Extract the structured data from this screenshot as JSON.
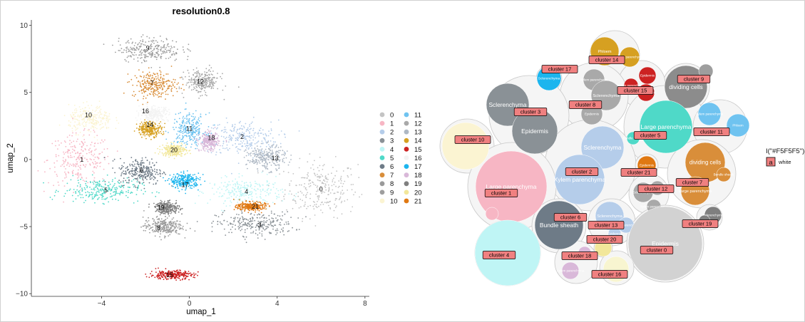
{
  "chart_data": [
    {
      "type": "scatter",
      "title": "resolution0.8",
      "xlabel": "umap_1",
      "ylabel": "umap_2",
      "xlim": [
        -7.2,
        8.2
      ],
      "ylim": [
        -10.2,
        10.4
      ],
      "xticks": [
        -4,
        0,
        4,
        8
      ],
      "yticks": [
        -10,
        -5,
        0,
        5,
        10
      ],
      "xtick_labels": [
        "−4",
        "0",
        "4",
        "8"
      ],
      "ytick_labels": [
        "−10",
        "−5",
        "0",
        "5",
        "10"
      ],
      "grid": false,
      "legend_position": "right",
      "series": [
        {
          "name": "0",
          "color": "#C4C4C4",
          "center": [
            6.0,
            -2.2
          ],
          "spread": [
            1.5,
            1.9
          ]
        },
        {
          "name": "1",
          "color": "#F7B6C4",
          "center": [
            -5.0,
            0.0
          ],
          "spread": [
            1.3,
            1.7
          ]
        },
        {
          "name": "2",
          "color": "#B5CDEA",
          "center": [
            2.4,
            1.6
          ],
          "spread": [
            1.5,
            1.2
          ]
        },
        {
          "name": "3",
          "color": "#8A9196",
          "center": [
            3.0,
            -4.8
          ],
          "spread": [
            1.6,
            0.8
          ]
        },
        {
          "name": "4",
          "color": "#BFF5F5",
          "center": [
            2.6,
            -2.4
          ],
          "spread": [
            1.5,
            0.9
          ]
        },
        {
          "name": "5",
          "color": "#4FD9C8",
          "center": [
            -4.0,
            -2.3
          ],
          "spread": [
            1.6,
            0.8
          ]
        },
        {
          "name": "6",
          "color": "#6E7B87",
          "center": [
            -2.2,
            -0.9
          ],
          "spread": [
            0.9,
            0.9
          ]
        },
        {
          "name": "7",
          "color": "#D98E3A",
          "center": [
            -1.6,
            5.6
          ],
          "spread": [
            0.9,
            0.9
          ]
        },
        {
          "name": "8",
          "color": "#9A9A9A",
          "center": [
            -1.2,
            -5.0
          ],
          "spread": [
            0.8,
            0.6
          ]
        },
        {
          "name": "9",
          "color": "#9E9E9E",
          "center": [
            -1.8,
            8.2
          ],
          "spread": [
            1.3,
            0.8
          ]
        },
        {
          "name": "10",
          "color": "#FBF4D2",
          "center": [
            -4.5,
            3.0
          ],
          "spread": [
            0.9,
            0.9
          ]
        },
        {
          "name": "11",
          "color": "#6FC3F0",
          "center": [
            0.0,
            2.2
          ],
          "spread": [
            0.7,
            1.1
          ]
        },
        {
          "name": "12",
          "color": "#A9A9A9",
          "center": [
            0.6,
            5.8
          ],
          "spread": [
            0.7,
            0.8
          ]
        },
        {
          "name": "13",
          "color": "#AEB8C4",
          "center": [
            3.5,
            0.1
          ],
          "spread": [
            0.8,
            0.8
          ]
        },
        {
          "name": "14",
          "color": "#D6A021",
          "center": [
            -1.8,
            2.3
          ],
          "spread": [
            0.5,
            0.5
          ]
        },
        {
          "name": "15",
          "color": "#CC2222",
          "center": [
            -0.8,
            -8.6
          ],
          "spread": [
            0.9,
            0.3
          ]
        },
        {
          "name": "16",
          "color": "#F3F3F3",
          "center": [
            -1.6,
            3.4
          ],
          "spread": [
            0.6,
            0.5
          ]
        },
        {
          "name": "17",
          "color": "#1CB5EE",
          "center": [
            -0.2,
            -1.6
          ],
          "spread": [
            0.6,
            0.5
          ]
        },
        {
          "name": "18",
          "color": "#D9B8D9",
          "center": [
            0.9,
            1.3
          ],
          "spread": [
            0.4,
            0.6
          ]
        },
        {
          "name": "19",
          "color": "#7F7F7F",
          "center": [
            -1.0,
            -3.6
          ],
          "spread": [
            0.5,
            0.4
          ]
        },
        {
          "name": "20",
          "color": "#F2E79A",
          "center": [
            -0.7,
            0.7
          ],
          "spread": [
            0.5,
            0.4
          ]
        },
        {
          "name": "21",
          "color": "#E07812",
          "center": [
            2.8,
            -3.5
          ],
          "spread": [
            0.6,
            0.3
          ]
        }
      ],
      "point_labels": [
        {
          "text": "9",
          "x": -1.9,
          "y": 8.3
        },
        {
          "text": "7",
          "x": -1.7,
          "y": 5.7
        },
        {
          "text": "12",
          "x": 0.5,
          "y": 5.8
        },
        {
          "text": "16",
          "x": -2.0,
          "y": 3.6
        },
        {
          "text": "10",
          "x": -4.6,
          "y": 3.3
        },
        {
          "text": "14",
          "x": -1.8,
          "y": 2.6
        },
        {
          "text": "11",
          "x": 0.0,
          "y": 2.3
        },
        {
          "text": "18",
          "x": 1.0,
          "y": 1.6
        },
        {
          "text": "2",
          "x": 2.4,
          "y": 1.7
        },
        {
          "text": "20",
          "x": -0.7,
          "y": 0.7
        },
        {
          "text": "1",
          "x": -4.9,
          "y": 0.0
        },
        {
          "text": "13",
          "x": 3.9,
          "y": 0.1
        },
        {
          "text": "6",
          "x": -2.2,
          "y": -0.8
        },
        {
          "text": "17",
          "x": -0.2,
          "y": -1.9
        },
        {
          "text": "5",
          "x": -3.8,
          "y": -2.3
        },
        {
          "text": "4",
          "x": 2.6,
          "y": -2.4
        },
        {
          "text": "0",
          "x": 6.0,
          "y": -2.2
        },
        {
          "text": "19",
          "x": -1.3,
          "y": -3.6
        },
        {
          "text": "21",
          "x": 3.0,
          "y": -3.5
        },
        {
          "text": "3",
          "x": 3.2,
          "y": -4.9
        },
        {
          "text": "8",
          "x": -1.4,
          "y": -5.1
        },
        {
          "text": "15",
          "x": -0.9,
          "y": -8.6
        }
      ]
    },
    {
      "type": "bubble",
      "title": "",
      "legend": {
        "title": "I(\"#F5F5F5\")",
        "key_label": "a",
        "value": "white"
      },
      "groups": [
        {
          "tag": "cluster 17",
          "members": [
            {
              "label": "Sclerenchyma",
              "color": "#1CB5EE",
              "r": 17
            }
          ]
        },
        {
          "tag": "cluster 14",
          "members": [
            {
              "label": "Phloem",
              "color": "#D6A021",
              "r": 20
            },
            {
              "label": "Xylem parenchyma",
              "color": "#D6A021",
              "r": 14
            }
          ]
        },
        {
          "tag": "cluster 9",
          "members": [
            {
              "label": "dividing cells",
              "color": "#8C8C8C",
              "r": 30
            },
            {
              "label": "",
              "color": "#9E9E9E",
              "r": 10
            }
          ]
        },
        {
          "tag": "cluster 15",
          "members": [
            {
              "label": "Epidermis",
              "color": "#CC2222",
              "r": 12
            },
            {
              "label": "Xylem parenchyma",
              "color": "#CC2222",
              "r": 10
            },
            {
              "label": "Bundle sheath",
              "color": "#CC2222",
              "r": 12
            }
          ]
        },
        {
          "tag": "cluster 8",
          "members": [
            {
              "label": "Xylem parenchyma",
              "color": "#A9A9A9",
              "r": 15
            },
            {
              "label": "Sclerenchyma",
              "color": "#A9A9A9",
              "r": 21
            },
            {
              "label": "Epidermis",
              "color": "#A9A9A9",
              "r": 15
            }
          ]
        },
        {
          "tag": "cluster 3",
          "members": [
            {
              "label": "Sclerenchyma",
              "color": "#8A9196",
              "r": 30
            },
            {
              "label": "Epidermis",
              "color": "#8A9196",
              "r": 32
            }
          ]
        },
        {
          "tag": "cluster 5",
          "members": [
            {
              "label": "Large parenchyma",
              "color": "#4FD9C8",
              "r": 37
            },
            {
              "label": "Bundle sheath",
              "color": "#4FD9C8",
              "r": 9
            }
          ]
        },
        {
          "tag": "cluster 11",
          "members": [
            {
              "label": "Xylem parenchyma",
              "color": "#6FC3F0",
              "r": 16
            },
            {
              "label": "Phloem",
              "color": "#6FC3F0",
              "r": 16
            }
          ]
        },
        {
          "tag": "cluster 10",
          "members": [
            {
              "label": "",
              "color": "#FBF4D2",
              "r": 33
            }
          ]
        },
        {
          "tag": "cluster 2",
          "members": [
            {
              "label": "Sclerenchyma",
              "color": "#B5CDEA",
              "r": 30
            },
            {
              "label": "Xylem parenchyma",
              "color": "#B5CDEA",
              "r": 35
            }
          ]
        },
        {
          "tag": "cluster 21",
          "members": [
            {
              "label": "Epidermis",
              "color": "#E07812",
              "r": 13
            }
          ]
        },
        {
          "tag": "cluster 1",
          "members": [
            {
              "label": "Large parenchyma",
              "color": "#F7B6C4",
              "r": 50
            },
            {
              "label": "",
              "color": "#F7B6C4",
              "r": 9
            }
          ]
        },
        {
          "tag": "cluster 12",
          "members": [
            {
              "label": "Sclerenchyma",
              "color": "#A9A9A9",
              "r": 14
            },
            {
              "label": "Xylem parenchyma",
              "color": "#A9A9A9",
              "r": 10
            },
            {
              "label": "Epidermis",
              "color": "#A9A9A9",
              "r": 10
            }
          ]
        },
        {
          "tag": "cluster 7",
          "members": [
            {
              "label": "dividing cells",
              "color": "#D98E3A",
              "r": 28
            },
            {
              "label": "Large parenchyma",
              "color": "#D98E3A",
              "r": 20
            },
            {
              "label": "Bundle sheath",
              "color": "#D98E3A",
              "r": 10
            }
          ]
        },
        {
          "tag": "cluster 6",
          "members": [
            {
              "label": "Bundle sheath",
              "color": "#6E7B87",
              "r": 34
            }
          ]
        },
        {
          "tag": "cluster 13",
          "members": [
            {
              "label": "Sclerenchyma",
              "color": "#B5CDEA",
              "r": 20
            },
            {
              "label": "Xylem parenchyma",
              "color": "#B5CDEA",
              "r": 11
            },
            {
              "label": "Epidermis",
              "color": "#B5CDEA",
              "r": 9
            }
          ]
        },
        {
          "tag": "cluster 19",
          "members": [
            {
              "label": "Sclerenchyma",
              "color": "#7F7F7F",
              "r": 12
            },
            {
              "label": "",
              "color": "#7F7F7F",
              "r": 8
            }
          ]
        },
        {
          "tag": "cluster 20",
          "members": [
            {
              "label": "",
              "color": "#F2E79A",
              "r": 12
            }
          ]
        },
        {
          "tag": "cluster 0",
          "members": [
            {
              "label": "Epidermis",
              "color": "#D2D2D2",
              "r": 52
            }
          ]
        },
        {
          "tag": "cluster 18",
          "members": [
            {
              "label": "Xylem parenchyma",
              "color": "#D9B8D9",
              "r": 12
            },
            {
              "label": "",
              "color": "#D9B8D9",
              "r": 9
            }
          ]
        },
        {
          "tag": "cluster 16",
          "members": [
            {
              "label": "",
              "color": "#F8F5D0",
              "r": 18
            }
          ]
        },
        {
          "tag": "cluster 4",
          "members": [
            {
              "label": "",
              "color": "#BFF5F5",
              "r": 46
            }
          ]
        }
      ]
    }
  ]
}
